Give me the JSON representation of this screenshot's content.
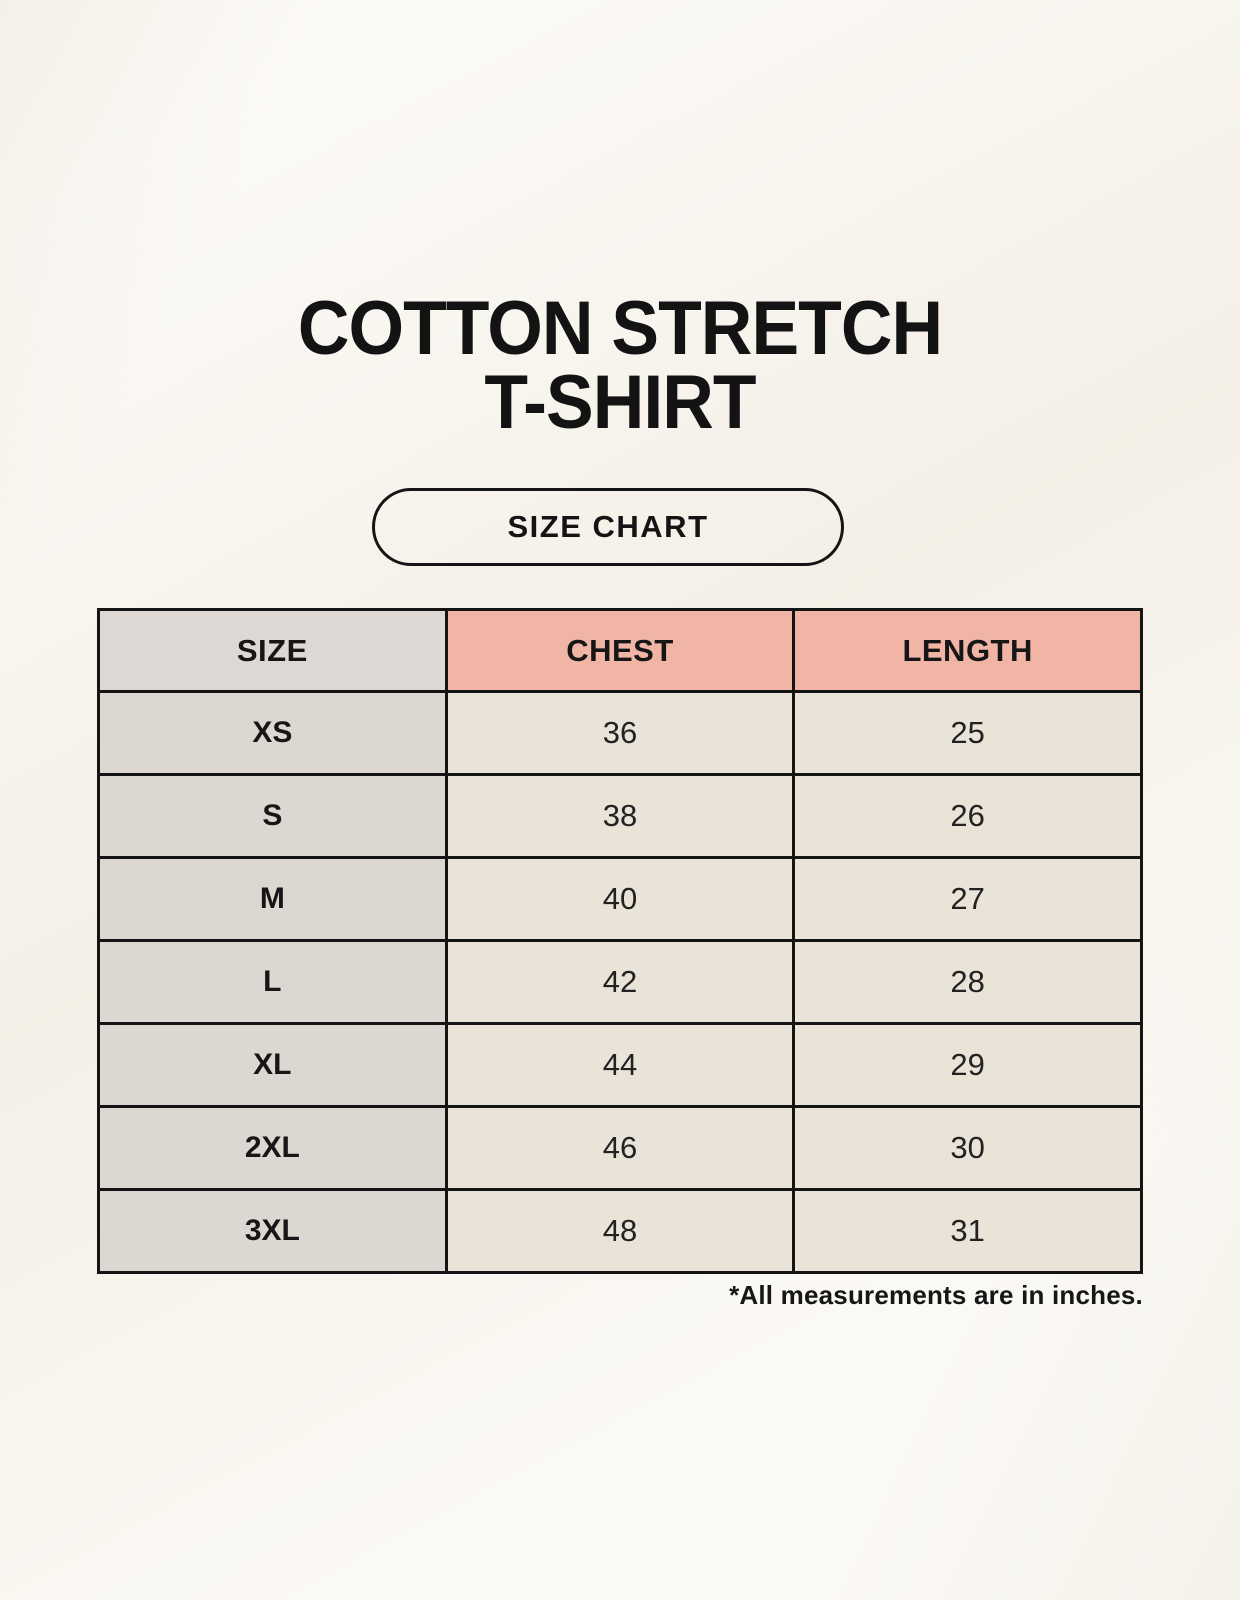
{
  "title": {
    "line1": "COTTON STRETCH",
    "line2": "T-SHIRT"
  },
  "badge": {
    "label": "SIZE CHART"
  },
  "table": {
    "headers": [
      "SIZE",
      "CHEST",
      "LENGTH"
    ],
    "rows": [
      [
        "XS",
        "36",
        "25"
      ],
      [
        "S",
        "38",
        "26"
      ],
      [
        "M",
        "40",
        "27"
      ],
      [
        "L",
        "42",
        "28"
      ],
      [
        "XL",
        "44",
        "29"
      ],
      [
        "2XL",
        "46",
        "30"
      ],
      [
        "3XL",
        "48",
        "31"
      ]
    ],
    "units_note": "*All measurements are in inches."
  },
  "colors": {
    "background": "#f8f4ec",
    "header_accent": "#f0b5a4",
    "header_neutral": "#ddd8d3",
    "row_label_bg": "#ddd7d2",
    "row_value_bg": "#eae3d8",
    "border": "#141414",
    "text": "#161616"
  }
}
